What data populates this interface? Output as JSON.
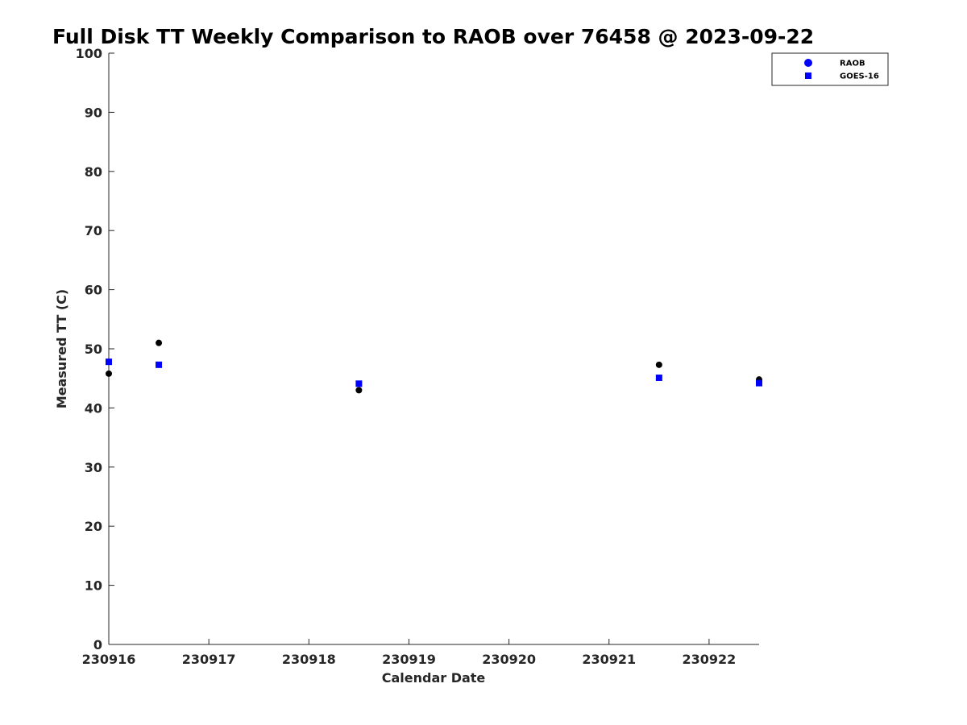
{
  "chart_data": {
    "type": "scatter",
    "title": "Full Disk TT Weekly Comparison to RAOB over 76458 @ 2023-09-22",
    "xlabel": "Calendar Date",
    "ylabel": "Measured TT (C)",
    "xlim": [
      "2023-09-16T00:00",
      "2023-09-22T12:00"
    ],
    "ylim": [
      0,
      100
    ],
    "x_ticks": [
      {
        "date": "2023-09-16",
        "label": "230916"
      },
      {
        "date": "2023-09-17",
        "label": "230917"
      },
      {
        "date": "2023-09-18",
        "label": "230918"
      },
      {
        "date": "2023-09-19",
        "label": "230919"
      },
      {
        "date": "2023-09-20",
        "label": "230920"
      },
      {
        "date": "2023-09-21",
        "label": "230921"
      },
      {
        "date": "2023-09-22",
        "label": "230922"
      }
    ],
    "y_ticks": [
      "0",
      "10",
      "20",
      "30",
      "40",
      "50",
      "60",
      "70",
      "80",
      "90",
      "100"
    ],
    "grid": false,
    "legend_position": "top-right",
    "series": [
      {
        "name": "RAOB",
        "marker": "circle",
        "legend_color": "#0000ff",
        "point_color": "#000000",
        "points": [
          {
            "x": "2023-09-16T00:00",
            "y": 45.8
          },
          {
            "x": "2023-09-16T12:00",
            "y": 51.0
          },
          {
            "x": "2023-09-18T12:00",
            "y": 43.0
          },
          {
            "x": "2023-09-21T12:00",
            "y": 47.3
          },
          {
            "x": "2023-09-22T12:00",
            "y": 44.8
          }
        ]
      },
      {
        "name": "GOES-16",
        "marker": "square",
        "legend_color": "#0000ff",
        "point_color": "#0000ff",
        "points": [
          {
            "x": "2023-09-16T00:00",
            "y": 47.8
          },
          {
            "x": "2023-09-16T12:00",
            "y": 47.3
          },
          {
            "x": "2023-09-18T12:00",
            "y": 44.1
          },
          {
            "x": "2023-09-21T12:00",
            "y": 45.1
          },
          {
            "x": "2023-09-22T12:00",
            "y": 44.2
          }
        ]
      }
    ]
  }
}
